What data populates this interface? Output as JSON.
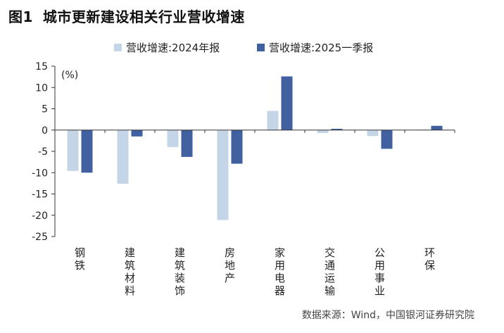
{
  "header": {
    "figure_number": "图1",
    "title": "城市更新建设相关行业营收增速"
  },
  "source": "数据来源：Wind，中国银河证券研究院",
  "colors": {
    "series_2024": "#c5d5e8",
    "series_2025q1": "#4060a0",
    "axis": "#333333"
  },
  "chart_data": {
    "type": "bar",
    "title": "城市更新建设相关行业营收增速",
    "ylabel": "(%)",
    "ylim": [
      -25,
      15
    ],
    "yticks": [
      15,
      10,
      5,
      0,
      -5,
      -10,
      -15,
      -20,
      -25
    ],
    "ytick_labels": [
      "15",
      "10",
      "5",
      "0",
      "-5",
      "-10",
      "-15",
      "-20",
      "-25"
    ],
    "grid": false,
    "legend_position": "top-center",
    "categories": [
      "钢铁",
      "建筑材料",
      "建筑装饰",
      "房地产",
      "家用电器",
      "交通运输",
      "公用事业",
      "环保"
    ],
    "series": [
      {
        "name": "营收增速:2024年报",
        "values": [
          -9.6,
          -12.6,
          -4.0,
          -21.1,
          4.5,
          -0.7,
          -1.4,
          0.1
        ]
      },
      {
        "name": "营收增速:2025一季报",
        "values": [
          -10.0,
          -1.5,
          -6.3,
          -7.9,
          12.6,
          0.3,
          -4.4,
          1.0
        ]
      }
    ]
  }
}
